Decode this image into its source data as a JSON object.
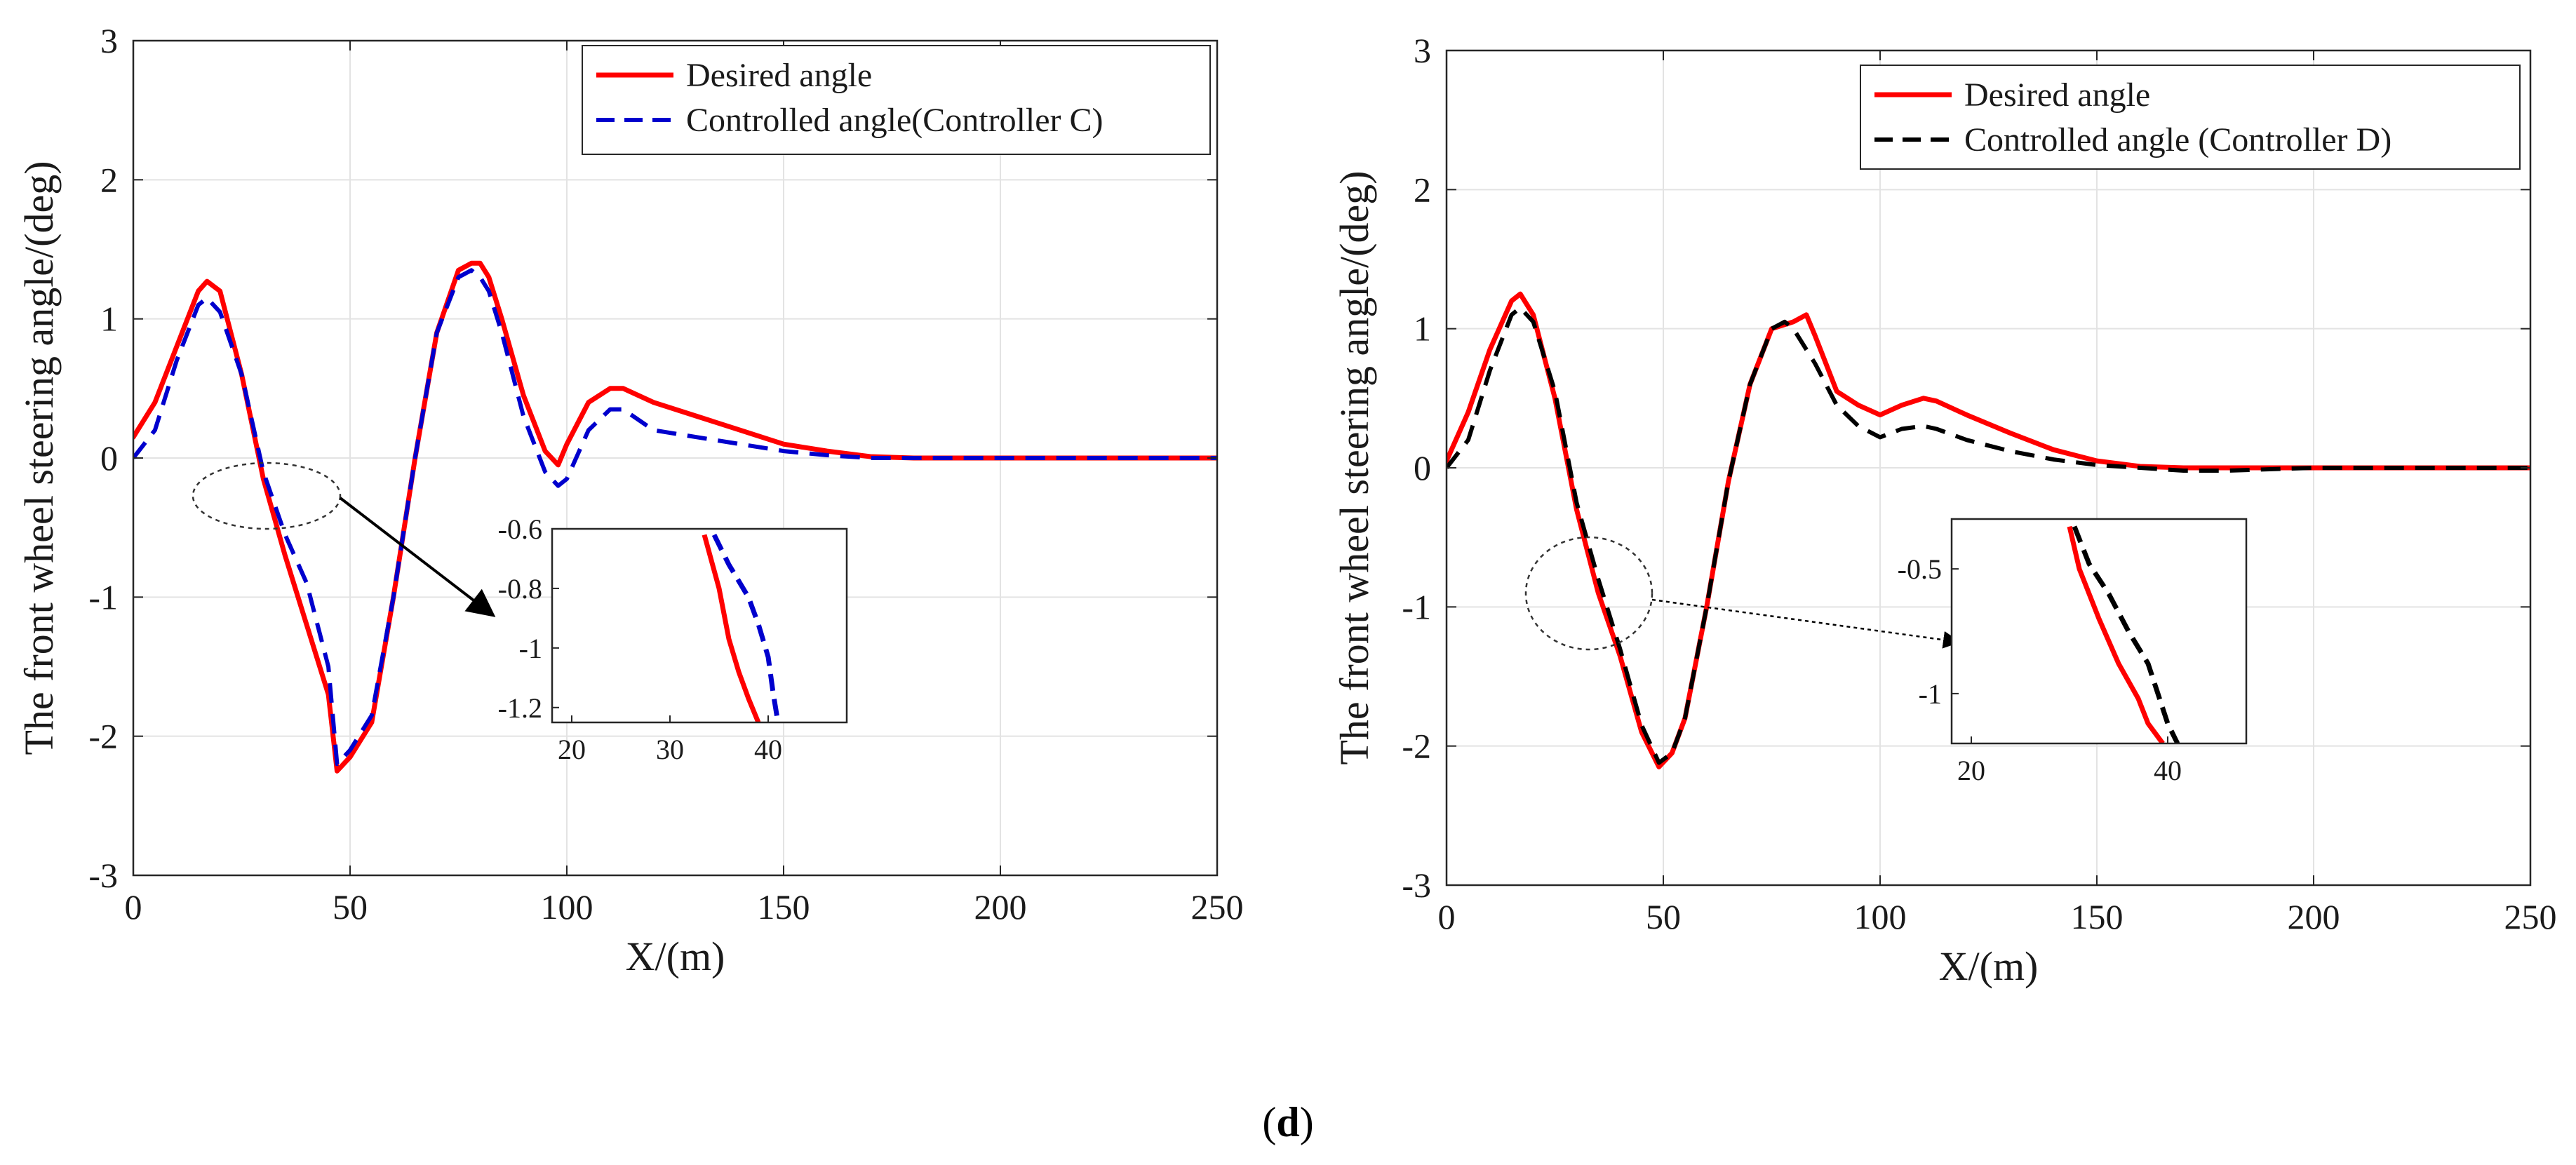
{
  "figure": {
    "caption_open": "(",
    "caption_letter": "d",
    "caption_close": ")"
  },
  "chart_data": [
    {
      "type": "line",
      "title": "",
      "xlabel": "X/(m)",
      "ylabel": "The front wheel steering angle/(deg)",
      "xlim": [
        0,
        250
      ],
      "ylim": [
        -3,
        3
      ],
      "xticks": [
        0,
        50,
        100,
        150,
        200,
        250
      ],
      "yticks": [
        -3,
        -2,
        -1,
        0,
        1,
        2,
        3
      ],
      "grid": true,
      "legend_position": "top-right",
      "series": [
        {
          "name": "Desired angle",
          "color": "#ff0000",
          "style": "solid",
          "x": [
            0,
            5,
            10,
            15,
            17,
            20,
            25,
            30,
            35,
            40,
            45,
            47,
            50,
            55,
            60,
            65,
            70,
            75,
            78,
            80,
            82,
            85,
            90,
            95,
            98,
            100,
            105,
            110,
            113,
            120,
            130,
            140,
            150,
            160,
            170,
            180,
            200,
            250
          ],
          "y": [
            0.15,
            0.4,
            0.8,
            1.2,
            1.27,
            1.2,
            0.6,
            -0.15,
            -0.7,
            -1.2,
            -1.7,
            -2.25,
            -2.15,
            -1.9,
            -1.0,
            0.0,
            0.9,
            1.35,
            1.4,
            1.4,
            1.3,
            1.0,
            0.45,
            0.05,
            -0.05,
            0.1,
            0.4,
            0.5,
            0.5,
            0.4,
            0.3,
            0.2,
            0.1,
            0.05,
            0.01,
            0.0,
            0.0,
            0.0
          ]
        },
        {
          "name": "Controlled angle(Controller C)",
          "color": "#0000cd",
          "style": "dashed",
          "x": [
            0,
            5,
            10,
            15,
            17,
            20,
            25,
            30,
            35,
            40,
            45,
            47,
            50,
            55,
            60,
            65,
            70,
            75,
            78,
            80,
            82,
            85,
            90,
            95,
            98,
            100,
            105,
            110,
            113,
            120,
            130,
            140,
            150,
            160,
            170,
            180,
            200,
            250
          ],
          "y": [
            0.0,
            0.2,
            0.7,
            1.1,
            1.15,
            1.05,
            0.6,
            -0.1,
            -0.55,
            -0.9,
            -1.5,
            -2.2,
            -2.1,
            -1.85,
            -1.0,
            0.0,
            0.9,
            1.3,
            1.35,
            1.3,
            1.2,
            0.9,
            0.3,
            -0.1,
            -0.2,
            -0.15,
            0.2,
            0.35,
            0.35,
            0.2,
            0.15,
            0.1,
            0.05,
            0.02,
            0.0,
            0.0,
            0.0,
            0.0
          ]
        }
      ],
      "inset": {
        "xlim": [
          18,
          48
        ],
        "ylim": [
          -1.25,
          -0.6
        ],
        "xticks": [
          20,
          30,
          40
        ],
        "yticks": [
          -0.6,
          -0.8,
          -1,
          -1.2
        ],
        "ytick_labels": [
          "-0.6",
          "-0.8",
          "-1",
          "-1.2"
        ],
        "series": [
          {
            "name": "Desired angle",
            "x": [
              33.5,
              35,
              36,
              37,
              38,
              39
            ],
            "y": [
              -0.62,
              -0.8,
              -0.97,
              -1.08,
              -1.17,
              -1.25
            ]
          },
          {
            "name": "Controlled angle(Controller C)",
            "x": [
              34.5,
              36,
              38,
              39,
              40,
              40.5,
              41
            ],
            "y": [
              -0.62,
              -0.72,
              -0.83,
              -0.92,
              -1.03,
              -1.15,
              -1.25
            ]
          }
        ]
      }
    },
    {
      "type": "line",
      "title": "",
      "xlabel": "X/(m)",
      "ylabel": "The front wheel steering angle/(deg)",
      "xlim": [
        0,
        250
      ],
      "ylim": [
        -3,
        3
      ],
      "xticks": [
        0,
        50,
        100,
        150,
        200,
        250
      ],
      "yticks": [
        -3,
        -2,
        -1,
        0,
        1,
        2,
        3
      ],
      "grid": true,
      "legend_position": "top-right",
      "series": [
        {
          "name": "Desired angle",
          "color": "#ff0000",
          "style": "solid",
          "x": [
            0,
            5,
            10,
            15,
            17,
            20,
            25,
            30,
            35,
            40,
            45,
            49,
            52,
            55,
            60,
            65,
            70,
            75,
            80,
            83,
            85,
            90,
            95,
            100,
            105,
            110,
            113,
            120,
            130,
            140,
            150,
            160,
            170,
            180,
            200,
            250
          ],
          "y": [
            0.05,
            0.4,
            0.85,
            1.2,
            1.25,
            1.1,
            0.5,
            -0.3,
            -0.9,
            -1.35,
            -1.9,
            -2.15,
            -2.05,
            -1.8,
            -1.0,
            -0.1,
            0.6,
            1.0,
            1.05,
            1.1,
            0.95,
            0.55,
            0.45,
            0.38,
            0.45,
            0.5,
            0.48,
            0.38,
            0.25,
            0.13,
            0.05,
            0.01,
            0.0,
            0.0,
            0.0,
            0.0
          ]
        },
        {
          "name": "Controlled angle (Controller D)",
          "color": "#000000",
          "style": "dashed",
          "x": [
            0,
            5,
            10,
            15,
            17,
            20,
            25,
            30,
            35,
            40,
            45,
            49,
            52,
            55,
            60,
            65,
            70,
            75,
            78,
            80,
            85,
            90,
            95,
            100,
            105,
            110,
            113,
            120,
            130,
            140,
            150,
            160,
            170,
            180,
            200,
            250
          ],
          "y": [
            0.0,
            0.2,
            0.7,
            1.1,
            1.15,
            1.05,
            0.55,
            -0.25,
            -0.8,
            -1.3,
            -1.85,
            -2.12,
            -2.05,
            -1.8,
            -1.0,
            -0.1,
            0.6,
            1.0,
            1.05,
            1.0,
            0.75,
            0.45,
            0.3,
            0.22,
            0.28,
            0.3,
            0.28,
            0.2,
            0.12,
            0.06,
            0.02,
            0.0,
            -0.02,
            -0.02,
            0.0,
            0.0
          ]
        }
      ],
      "inset": {
        "xlim": [
          18,
          48
        ],
        "ylim": [
          -1.2,
          -0.3
        ],
        "xticks": [
          20,
          40
        ],
        "yticks": [
          -0.5,
          -1
        ],
        "ytick_labels": [
          "-0.5",
          "-1"
        ],
        "series": [
          {
            "name": "Desired angle",
            "x": [
              30,
              31,
              33,
              35,
              37,
              38,
              39.5
            ],
            "y": [
              -0.33,
              -0.5,
              -0.7,
              -0.88,
              -1.02,
              -1.12,
              -1.2
            ]
          },
          {
            "name": "Controlled angle (Controller D)",
            "x": [
              30.5,
              32,
              34,
              36,
              38,
              39,
              40,
              41
            ],
            "y": [
              -0.33,
              -0.48,
              -0.6,
              -0.75,
              -0.88,
              -1.0,
              -1.12,
              -1.2
            ]
          }
        ]
      }
    }
  ]
}
